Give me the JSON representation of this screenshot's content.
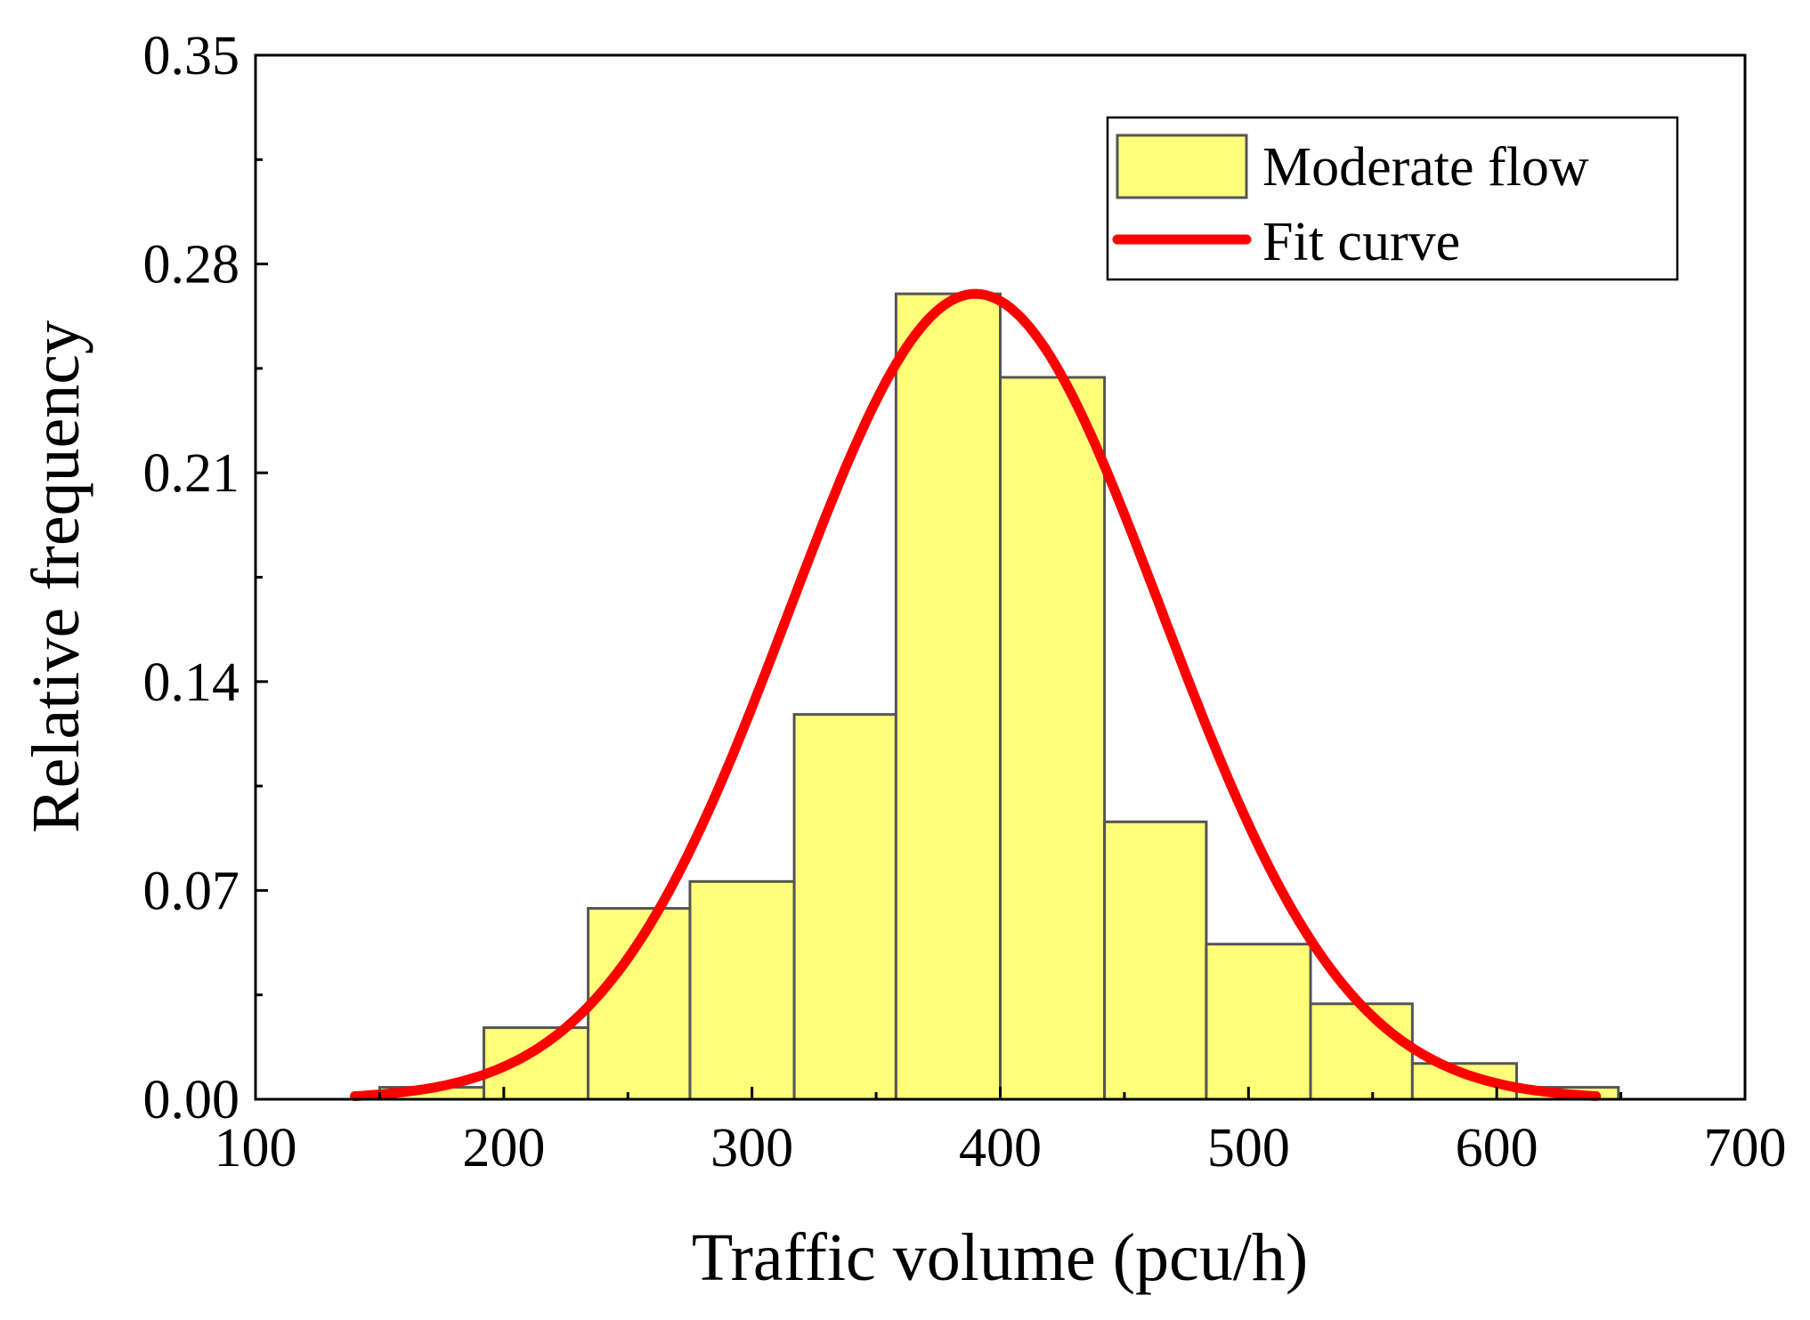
{
  "chart_data": {
    "type": "bar",
    "xlabel": "Traffic volume (pcu/h)",
    "ylabel": "Relative frequency",
    "xlim": [
      100,
      700
    ],
    "ylim": [
      0,
      0.35
    ],
    "xticks": [
      100,
      200,
      300,
      400,
      500,
      600,
      700
    ],
    "xtick_labels": [
      "100",
      "200",
      "300",
      "400",
      "500",
      "600",
      "700"
    ],
    "yticks": [
      0.0,
      0.07,
      0.14,
      0.21,
      0.28,
      0.35
    ],
    "ytick_labels": [
      "0.00",
      "0.07",
      "0.14",
      "0.21",
      "0.28",
      "0.35"
    ],
    "grid": false,
    "legend_position": "top-right",
    "series": [
      {
        "name": "Moderate flow",
        "kind": "histogram",
        "color": "#ffff7a",
        "edge_color": "#555555",
        "bins": [
          {
            "start": 150,
            "end": 192,
            "value": 0.004
          },
          {
            "start": 192,
            "end": 234,
            "value": 0.024
          },
          {
            "start": 234,
            "end": 275,
            "value": 0.064
          },
          {
            "start": 275,
            "end": 317,
            "value": 0.073
          },
          {
            "start": 317,
            "end": 358,
            "value": 0.129
          },
          {
            "start": 358,
            "end": 400,
            "value": 0.27
          },
          {
            "start": 400,
            "end": 442,
            "value": 0.242
          },
          {
            "start": 442,
            "end": 483,
            "value": 0.093
          },
          {
            "start": 483,
            "end": 525,
            "value": 0.052
          },
          {
            "start": 525,
            "end": 566,
            "value": 0.032
          },
          {
            "start": 566,
            "end": 608,
            "value": 0.012
          },
          {
            "start": 608,
            "end": 649,
            "value": 0.004
          }
        ]
      },
      {
        "name": "Fit curve",
        "kind": "line",
        "color": "#ff0000",
        "function": "normal",
        "mean": 390,
        "sd": 75,
        "peak": 0.27,
        "x_range": [
          140,
          640
        ]
      }
    ]
  }
}
